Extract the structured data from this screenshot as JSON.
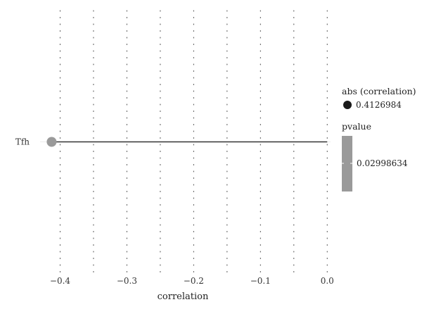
{
  "chart_data": {
    "type": "lollipop",
    "xlabel": "correlation",
    "ylabel": "",
    "xlim": [
      -0.43,
      0.005
    ],
    "x_ticks": [
      -0.4,
      -0.3,
      -0.2,
      -0.1,
      0.0
    ],
    "x_tick_labels": [
      "−0.4",
      "−0.3",
      "−0.2",
      "−0.1",
      "0.0"
    ],
    "categories": [
      "Tfh"
    ],
    "points": [
      {
        "category": "Tfh",
        "correlation": -0.4126984,
        "abs_correlation": 0.4126984,
        "pvalue": 0.02998634
      }
    ],
    "grid": "dotted vertical",
    "legend": {
      "size": {
        "title": "abs (correlation)",
        "label": "0.4126984"
      },
      "color": {
        "title": "pvalue",
        "label": "0.02998634"
      },
      "placement": "right"
    },
    "colors": {
      "point": "#9a9a9a",
      "stem": "#333333",
      "legend_point": "#1a1a1a",
      "colorbar": "#9a9a9a",
      "grid": "#555555"
    }
  }
}
